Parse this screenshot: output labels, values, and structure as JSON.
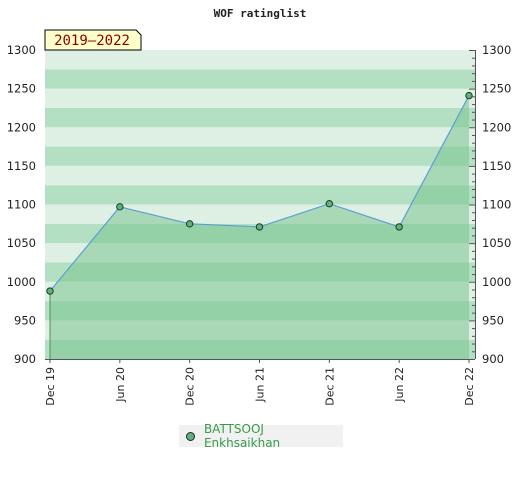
{
  "chart_data": {
    "type": "area",
    "title": "WOF ratinglist",
    "period_badge": "2019–2022",
    "categories": [
      "Dec 19",
      "Jun 20",
      "Dec 20",
      "Jun 21",
      "Dec 21",
      "Jun 22",
      "Dec 22"
    ],
    "y_ticks": [
      900,
      950,
      1000,
      1050,
      1100,
      1150,
      1200,
      1250,
      1300
    ],
    "ylim": [
      900,
      1300
    ],
    "series": [
      {
        "name": "BATTSOOJ Enkhsaikhan",
        "values": [
          988,
          1097,
          1075,
          1071,
          1101,
          1071,
          1241
        ]
      }
    ],
    "legend_position": "bottom-center",
    "colors": {
      "line": "#5a9fd4",
      "area": "#7cc58f",
      "marker": "#5fb37a",
      "band_dark": "#b3dfc3",
      "band_light": "#ddf0e3"
    }
  }
}
